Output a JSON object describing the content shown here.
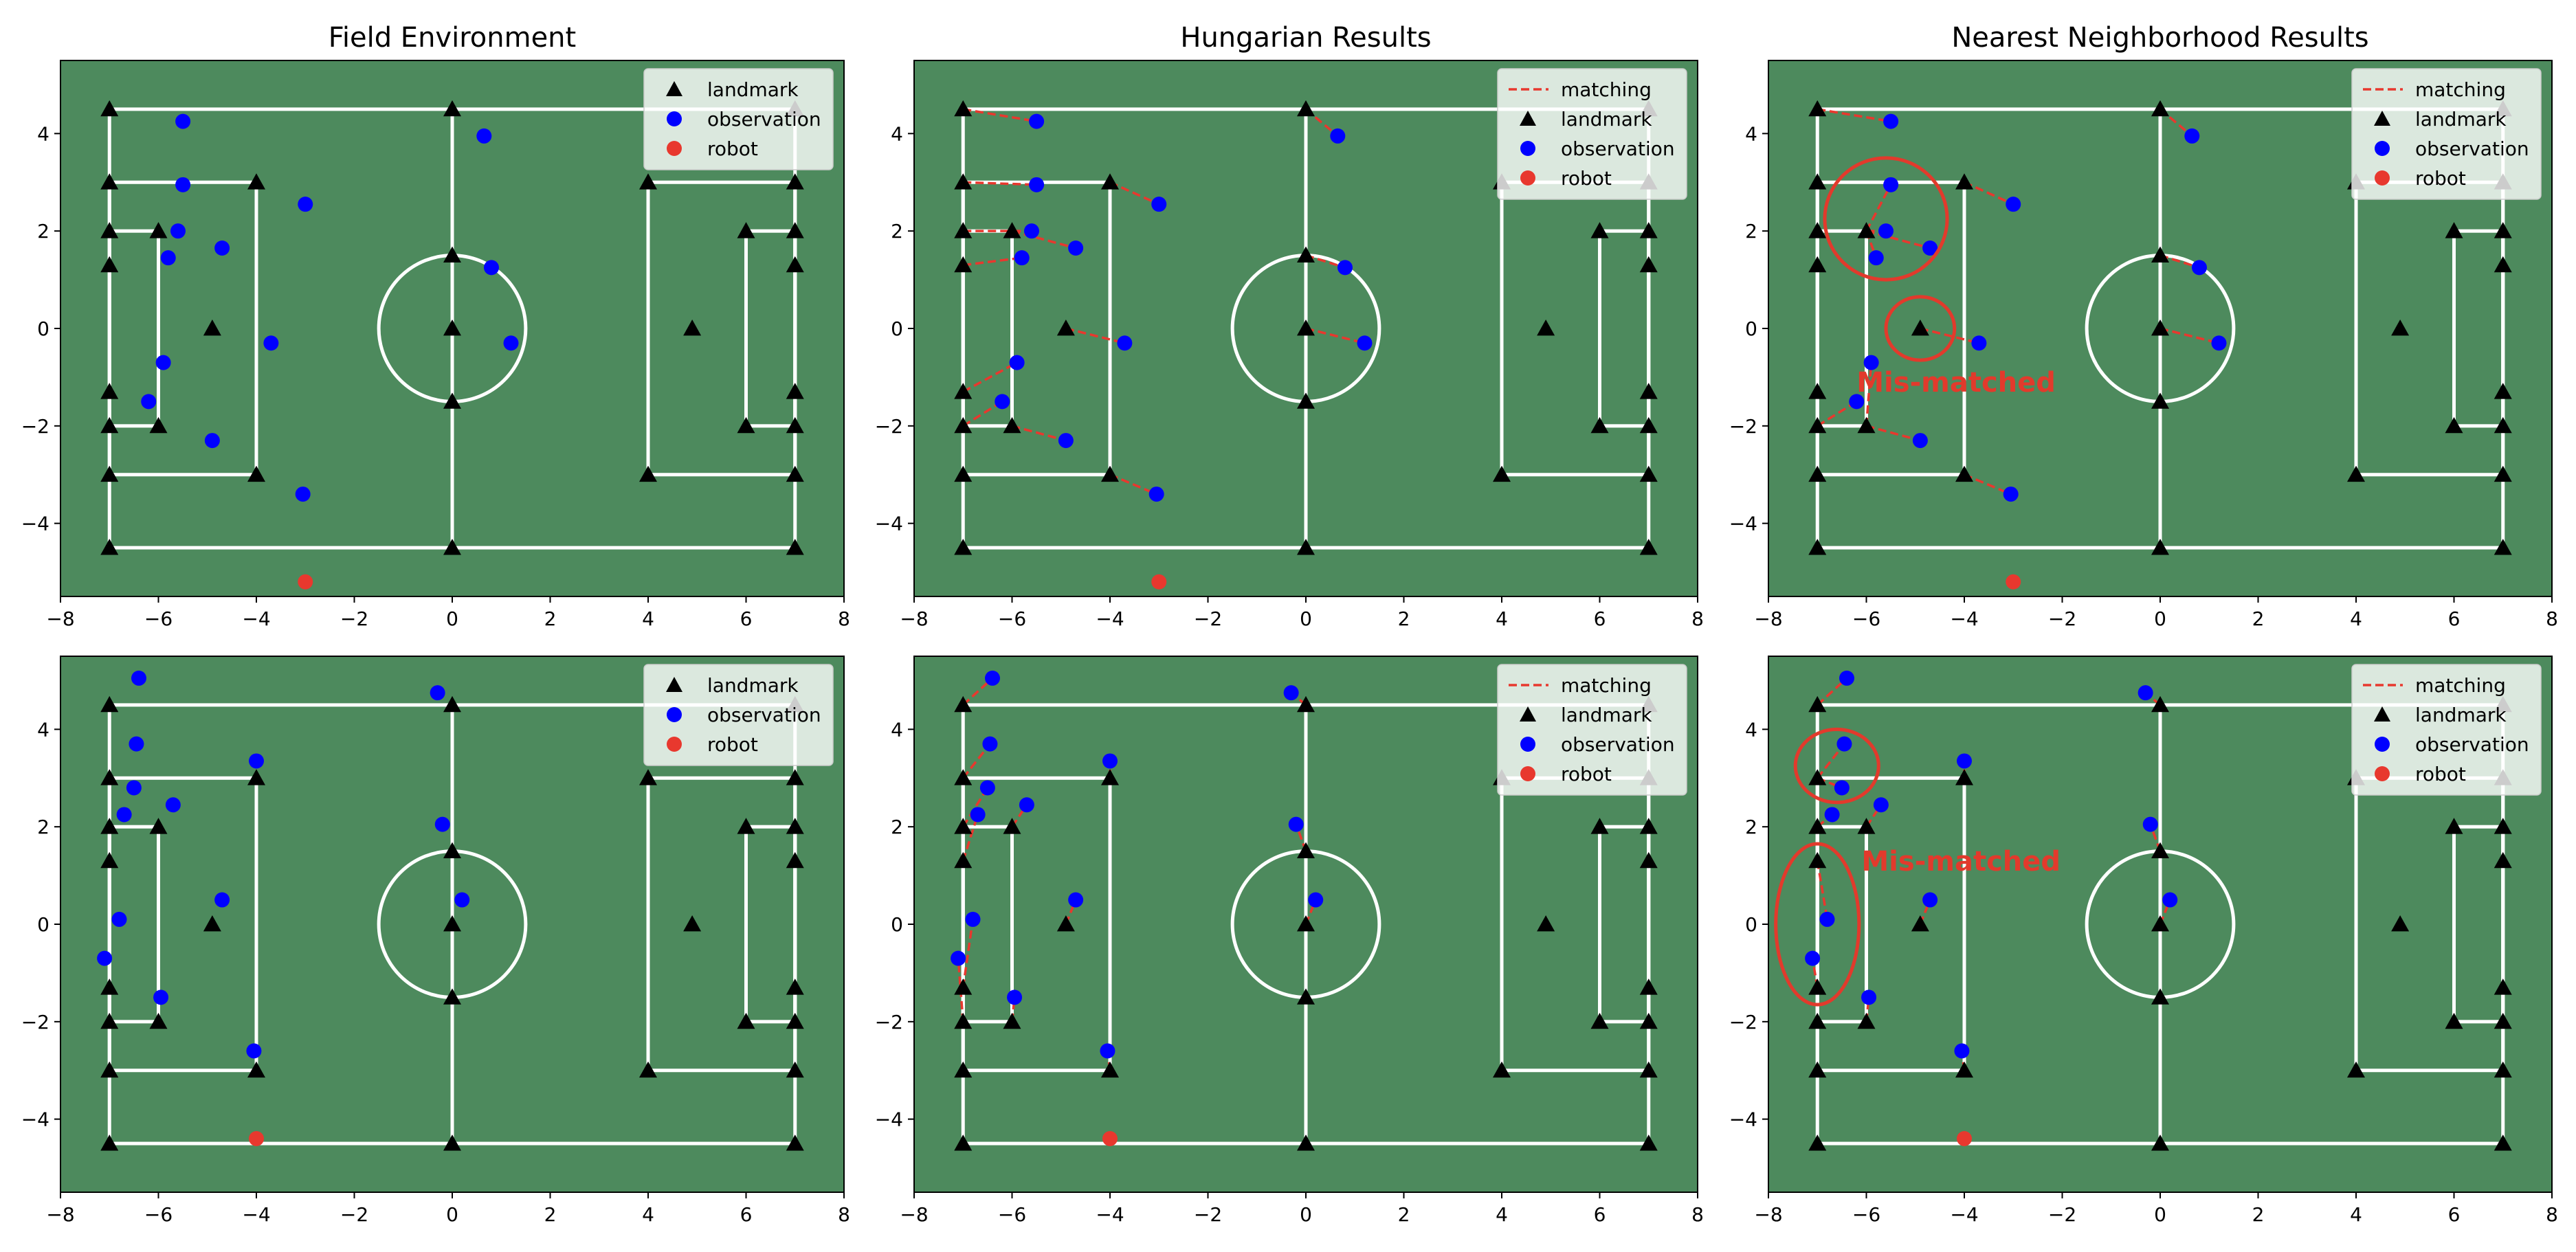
{
  "colors": {
    "field": "#4d8a5d",
    "lines": "#ffffff",
    "landmark": "#000000",
    "observation": "#0000ff",
    "robot": "#e8382e",
    "matching": "#e8382e",
    "annotation": "#e23a2c"
  },
  "axes_common": {
    "xlim": [
      -8,
      8
    ],
    "ylim": [
      -5.5,
      5.5
    ],
    "xticks": [
      -8,
      -6,
      -4,
      -2,
      0,
      2,
      4,
      6,
      8
    ],
    "yticks": [
      -4,
      -2,
      0,
      2,
      4
    ],
    "xtick_labels": [
      "−8",
      "−6",
      "−4",
      "−2",
      "0",
      "2",
      "4",
      "6",
      "8"
    ],
    "ytick_labels": [
      "−4",
      "−2",
      "0",
      "2",
      "4"
    ]
  },
  "legend_labels": {
    "matching": "matching",
    "landmark": "landmark",
    "observation": "observation",
    "robot": "robot"
  },
  "landmarks": [
    [
      -7,
      4.5
    ],
    [
      -7,
      3
    ],
    [
      -7,
      2
    ],
    [
      -7,
      1.3
    ],
    [
      -7,
      -1.3
    ],
    [
      -7,
      -2
    ],
    [
      -7,
      -3
    ],
    [
      -7,
      -4.5
    ],
    [
      -6,
      2
    ],
    [
      -6,
      -2
    ],
    [
      -4,
      3
    ],
    [
      -4,
      -3
    ],
    [
      -4.9,
      0
    ],
    [
      0,
      4.5
    ],
    [
      0,
      1.5
    ],
    [
      0,
      0
    ],
    [
      0,
      -1.5
    ],
    [
      0,
      -4.5
    ],
    [
      7,
      4.5
    ],
    [
      7,
      3
    ],
    [
      7,
      2
    ],
    [
      7,
      1.3
    ],
    [
      7,
      -1.3
    ],
    [
      7,
      -2
    ],
    [
      7,
      -3
    ],
    [
      7,
      -4.5
    ],
    [
      6,
      2
    ],
    [
      6,
      -2
    ],
    [
      4,
      3
    ],
    [
      4,
      -3
    ],
    [
      4.9,
      0
    ]
  ],
  "chart_data": [
    {
      "id": "top-field",
      "type": "scatter",
      "title": "Field Environment",
      "legend": [
        "landmark",
        "observation",
        "robot"
      ],
      "legend_position": "top-right",
      "robot": [
        -3,
        -5.2
      ],
      "observations": [
        [
          -5.5,
          4.25
        ],
        [
          0.65,
          3.95
        ],
        [
          -5.5,
          2.95
        ],
        [
          -3,
          2.55
        ],
        [
          -5.6,
          2
        ],
        [
          -4.7,
          1.65
        ],
        [
          -5.8,
          1.45
        ],
        [
          0.8,
          1.25
        ],
        [
          -3.7,
          -0.3
        ],
        [
          1.2,
          -0.3
        ],
        [
          -5.9,
          -0.7
        ],
        [
          -6.2,
          -1.5
        ],
        [
          -4.9,
          -2.3
        ],
        [
          -3.05,
          -3.4
        ]
      ],
      "matches": []
    },
    {
      "id": "top-hungarian",
      "type": "scatter",
      "title": "Hungarian Results",
      "legend": [
        "matching",
        "landmark",
        "observation",
        "robot"
      ],
      "legend_position": "top-right",
      "robot": [
        -3,
        -5.2
      ],
      "observations": [
        [
          -5.5,
          4.25
        ],
        [
          0.65,
          3.95
        ],
        [
          -5.5,
          2.95
        ],
        [
          -3,
          2.55
        ],
        [
          -5.6,
          2
        ],
        [
          -4.7,
          1.65
        ],
        [
          -5.8,
          1.45
        ],
        [
          0.8,
          1.25
        ],
        [
          -3.7,
          -0.3
        ],
        [
          1.2,
          -0.3
        ],
        [
          -5.9,
          -0.7
        ],
        [
          -6.2,
          -1.5
        ],
        [
          -4.9,
          -2.3
        ],
        [
          -3.05,
          -3.4
        ]
      ],
      "matches": [
        [
          [
            -7,
            4.5
          ],
          [
            -5.5,
            4.25
          ]
        ],
        [
          [
            0,
            4.5
          ],
          [
            0.65,
            3.95
          ]
        ],
        [
          [
            -7,
            3
          ],
          [
            -5.5,
            2.95
          ]
        ],
        [
          [
            -4,
            3
          ],
          [
            -3,
            2.55
          ]
        ],
        [
          [
            -7,
            2
          ],
          [
            -5.6,
            2
          ]
        ],
        [
          [
            -6,
            2
          ],
          [
            -4.7,
            1.65
          ]
        ],
        [
          [
            -7,
            1.3
          ],
          [
            -5.8,
            1.45
          ]
        ],
        [
          [
            0,
            1.5
          ],
          [
            0.8,
            1.25
          ]
        ],
        [
          [
            -4.9,
            0
          ],
          [
            -3.7,
            -0.3
          ]
        ],
        [
          [
            0,
            0
          ],
          [
            1.2,
            -0.3
          ]
        ],
        [
          [
            -7,
            -1.3
          ],
          [
            -5.9,
            -0.7
          ]
        ],
        [
          [
            -7,
            -2
          ],
          [
            -6.2,
            -1.5
          ]
        ],
        [
          [
            -6,
            -2
          ],
          [
            -4.9,
            -2.3
          ]
        ],
        [
          [
            -4,
            -3
          ],
          [
            -3.05,
            -3.4
          ]
        ]
      ]
    },
    {
      "id": "top-nearest",
      "type": "scatter",
      "title": "Nearest Neighborhood Results",
      "legend": [
        "matching",
        "landmark",
        "observation",
        "robot"
      ],
      "legend_position": "top-right",
      "robot": [
        -3,
        -5.2
      ],
      "observations": [
        [
          -5.5,
          4.25
        ],
        [
          0.65,
          3.95
        ],
        [
          -5.5,
          2.95
        ],
        [
          -3,
          2.55
        ],
        [
          -5.6,
          2
        ],
        [
          -4.7,
          1.65
        ],
        [
          -5.8,
          1.45
        ],
        [
          0.8,
          1.25
        ],
        [
          -3.7,
          -0.3
        ],
        [
          1.2,
          -0.3
        ],
        [
          -5.9,
          -0.7
        ],
        [
          -6.2,
          -1.5
        ],
        [
          -4.9,
          -2.3
        ],
        [
          -3.05,
          -3.4
        ]
      ],
      "matches": [
        [
          [
            -7,
            4.5
          ],
          [
            -5.5,
            4.25
          ]
        ],
        [
          [
            0,
            4.5
          ],
          [
            0.65,
            3.95
          ]
        ],
        [
          [
            -6,
            2
          ],
          [
            -5.5,
            2.95
          ]
        ],
        [
          [
            -4,
            3
          ],
          [
            -3,
            2.55
          ]
        ],
        [
          [
            -6,
            2
          ],
          [
            -5.6,
            2
          ]
        ],
        [
          [
            -6,
            2
          ],
          [
            -4.7,
            1.65
          ]
        ],
        [
          [
            -6,
            2
          ],
          [
            -5.8,
            1.45
          ]
        ],
        [
          [
            0,
            1.5
          ],
          [
            0.8,
            1.25
          ]
        ],
        [
          [
            -4.9,
            0
          ],
          [
            -3.7,
            -0.3
          ]
        ],
        [
          [
            0,
            0
          ],
          [
            1.2,
            -0.3
          ]
        ],
        [
          [
            -6,
            -2
          ],
          [
            -5.9,
            -0.7
          ]
        ],
        [
          [
            -7,
            -2
          ],
          [
            -6.2,
            -1.5
          ]
        ],
        [
          [
            -6,
            -2
          ],
          [
            -4.9,
            -2.3
          ]
        ],
        [
          [
            -4,
            -3
          ],
          [
            -3.05,
            -3.4
          ]
        ]
      ],
      "annotations": [
        {
          "text": "Mis-matched",
          "x": -6.2,
          "y": -1.3
        }
      ],
      "highlight_ellipses": [
        [
          -5.6,
          2.25,
          1.25,
          1.25
        ],
        [
          -4.9,
          0,
          0.7,
          0.65
        ]
      ]
    },
    {
      "id": "bottom-field",
      "type": "scatter",
      "title": "",
      "legend": [
        "landmark",
        "observation",
        "robot"
      ],
      "legend_position": "top-right",
      "robot": [
        -4,
        -4.4
      ],
      "observations": [
        [
          -6.4,
          5.05
        ],
        [
          -0.3,
          4.75
        ],
        [
          -6.45,
          3.7
        ],
        [
          -4,
          3.35
        ],
        [
          -6.5,
          2.8
        ],
        [
          -5.7,
          2.45
        ],
        [
          -6.7,
          2.25
        ],
        [
          -0.2,
          2.05
        ],
        [
          -4.7,
          0.5
        ],
        [
          0.2,
          0.5
        ],
        [
          -6.8,
          0.1
        ],
        [
          -7.1,
          -0.7
        ],
        [
          -5.95,
          -1.5
        ],
        [
          -4.05,
          -2.6
        ]
      ],
      "matches": []
    },
    {
      "id": "bottom-hungarian",
      "type": "scatter",
      "title": "",
      "legend": [
        "matching",
        "landmark",
        "observation",
        "robot"
      ],
      "legend_position": "top-right",
      "robot": [
        -4,
        -4.4
      ],
      "observations": [
        [
          -6.4,
          5.05
        ],
        [
          -0.3,
          4.75
        ],
        [
          -6.45,
          3.7
        ],
        [
          -4,
          3.35
        ],
        [
          -6.5,
          2.8
        ],
        [
          -5.7,
          2.45
        ],
        [
          -6.7,
          2.25
        ],
        [
          -0.2,
          2.05
        ],
        [
          -4.7,
          0.5
        ],
        [
          0.2,
          0.5
        ],
        [
          -6.8,
          0.1
        ],
        [
          -7.1,
          -0.7
        ],
        [
          -5.95,
          -1.5
        ],
        [
          -4.05,
          -2.6
        ]
      ],
      "matches": [
        [
          [
            -7,
            4.5
          ],
          [
            -6.4,
            5.05
          ]
        ],
        [
          [
            0,
            4.5
          ],
          [
            -0.3,
            4.75
          ]
        ],
        [
          [
            -7,
            3
          ],
          [
            -6.45,
            3.7
          ]
        ],
        [
          [
            -4,
            3
          ],
          [
            -4,
            3.35
          ]
        ],
        [
          [
            -7,
            2
          ],
          [
            -6.5,
            2.8
          ]
        ],
        [
          [
            -6,
            2
          ],
          [
            -5.7,
            2.45
          ]
        ],
        [
          [
            -7,
            1.3
          ],
          [
            -6.7,
            2.25
          ]
        ],
        [
          [
            0,
            1.5
          ],
          [
            -0.2,
            2.05
          ]
        ],
        [
          [
            -4.9,
            0
          ],
          [
            -4.7,
            0.5
          ]
        ],
        [
          [
            0,
            0
          ],
          [
            0.2,
            0.5
          ]
        ],
        [
          [
            -7,
            -1.3
          ],
          [
            -6.8,
            0.1
          ]
        ],
        [
          [
            -7,
            -2
          ],
          [
            -7.1,
            -0.7
          ]
        ],
        [
          [
            -6,
            -2
          ],
          [
            -5.95,
            -1.5
          ]
        ],
        [
          [
            -4,
            -3
          ],
          [
            -4.05,
            -2.6
          ]
        ]
      ]
    },
    {
      "id": "bottom-nearest",
      "type": "scatter",
      "title": "",
      "legend": [
        "matching",
        "landmark",
        "observation",
        "robot"
      ],
      "legend_position": "top-right",
      "robot": [
        -4,
        -4.4
      ],
      "observations": [
        [
          -6.4,
          5.05
        ],
        [
          -0.3,
          4.75
        ],
        [
          -6.45,
          3.7
        ],
        [
          -4,
          3.35
        ],
        [
          -6.5,
          2.8
        ],
        [
          -5.7,
          2.45
        ],
        [
          -6.7,
          2.25
        ],
        [
          -0.2,
          2.05
        ],
        [
          -4.7,
          0.5
        ],
        [
          0.2,
          0.5
        ],
        [
          -6.8,
          0.1
        ],
        [
          -7.1,
          -0.7
        ],
        [
          -5.95,
          -1.5
        ],
        [
          -4.05,
          -2.6
        ]
      ],
      "matches": [
        [
          [
            -7,
            4.5
          ],
          [
            -6.4,
            5.05
          ]
        ],
        [
          [
            0,
            4.5
          ],
          [
            -0.3,
            4.75
          ]
        ],
        [
          [
            -7,
            3
          ],
          [
            -6.45,
            3.7
          ]
        ],
        [
          [
            -4,
            3
          ],
          [
            -4,
            3.35
          ]
        ],
        [
          [
            -7,
            3
          ],
          [
            -6.5,
            2.8
          ]
        ],
        [
          [
            -6,
            2
          ],
          [
            -5.7,
            2.45
          ]
        ],
        [
          [
            -7,
            2
          ],
          [
            -6.7,
            2.25
          ]
        ],
        [
          [
            0,
            1.5
          ],
          [
            -0.2,
            2.05
          ]
        ],
        [
          [
            -4.9,
            0
          ],
          [
            -4.7,
            0.5
          ]
        ],
        [
          [
            0,
            0
          ],
          [
            0.2,
            0.5
          ]
        ],
        [
          [
            -7,
            1.3
          ],
          [
            -6.8,
            0.1
          ]
        ],
        [
          [
            -7,
            -1.3
          ],
          [
            -7.1,
            -0.7
          ]
        ],
        [
          [
            -6,
            -2
          ],
          [
            -5.95,
            -1.5
          ]
        ],
        [
          [
            -4,
            -3
          ],
          [
            -4.05,
            -2.6
          ]
        ]
      ],
      "annotations": [
        {
          "text": "Mis-matched",
          "x": -6.1,
          "y": 1.1
        }
      ],
      "highlight_ellipses": [
        [
          -6.6,
          3.25,
          0.85,
          0.75
        ],
        [
          -7.0,
          0,
          0.85,
          1.65
        ]
      ]
    }
  ]
}
